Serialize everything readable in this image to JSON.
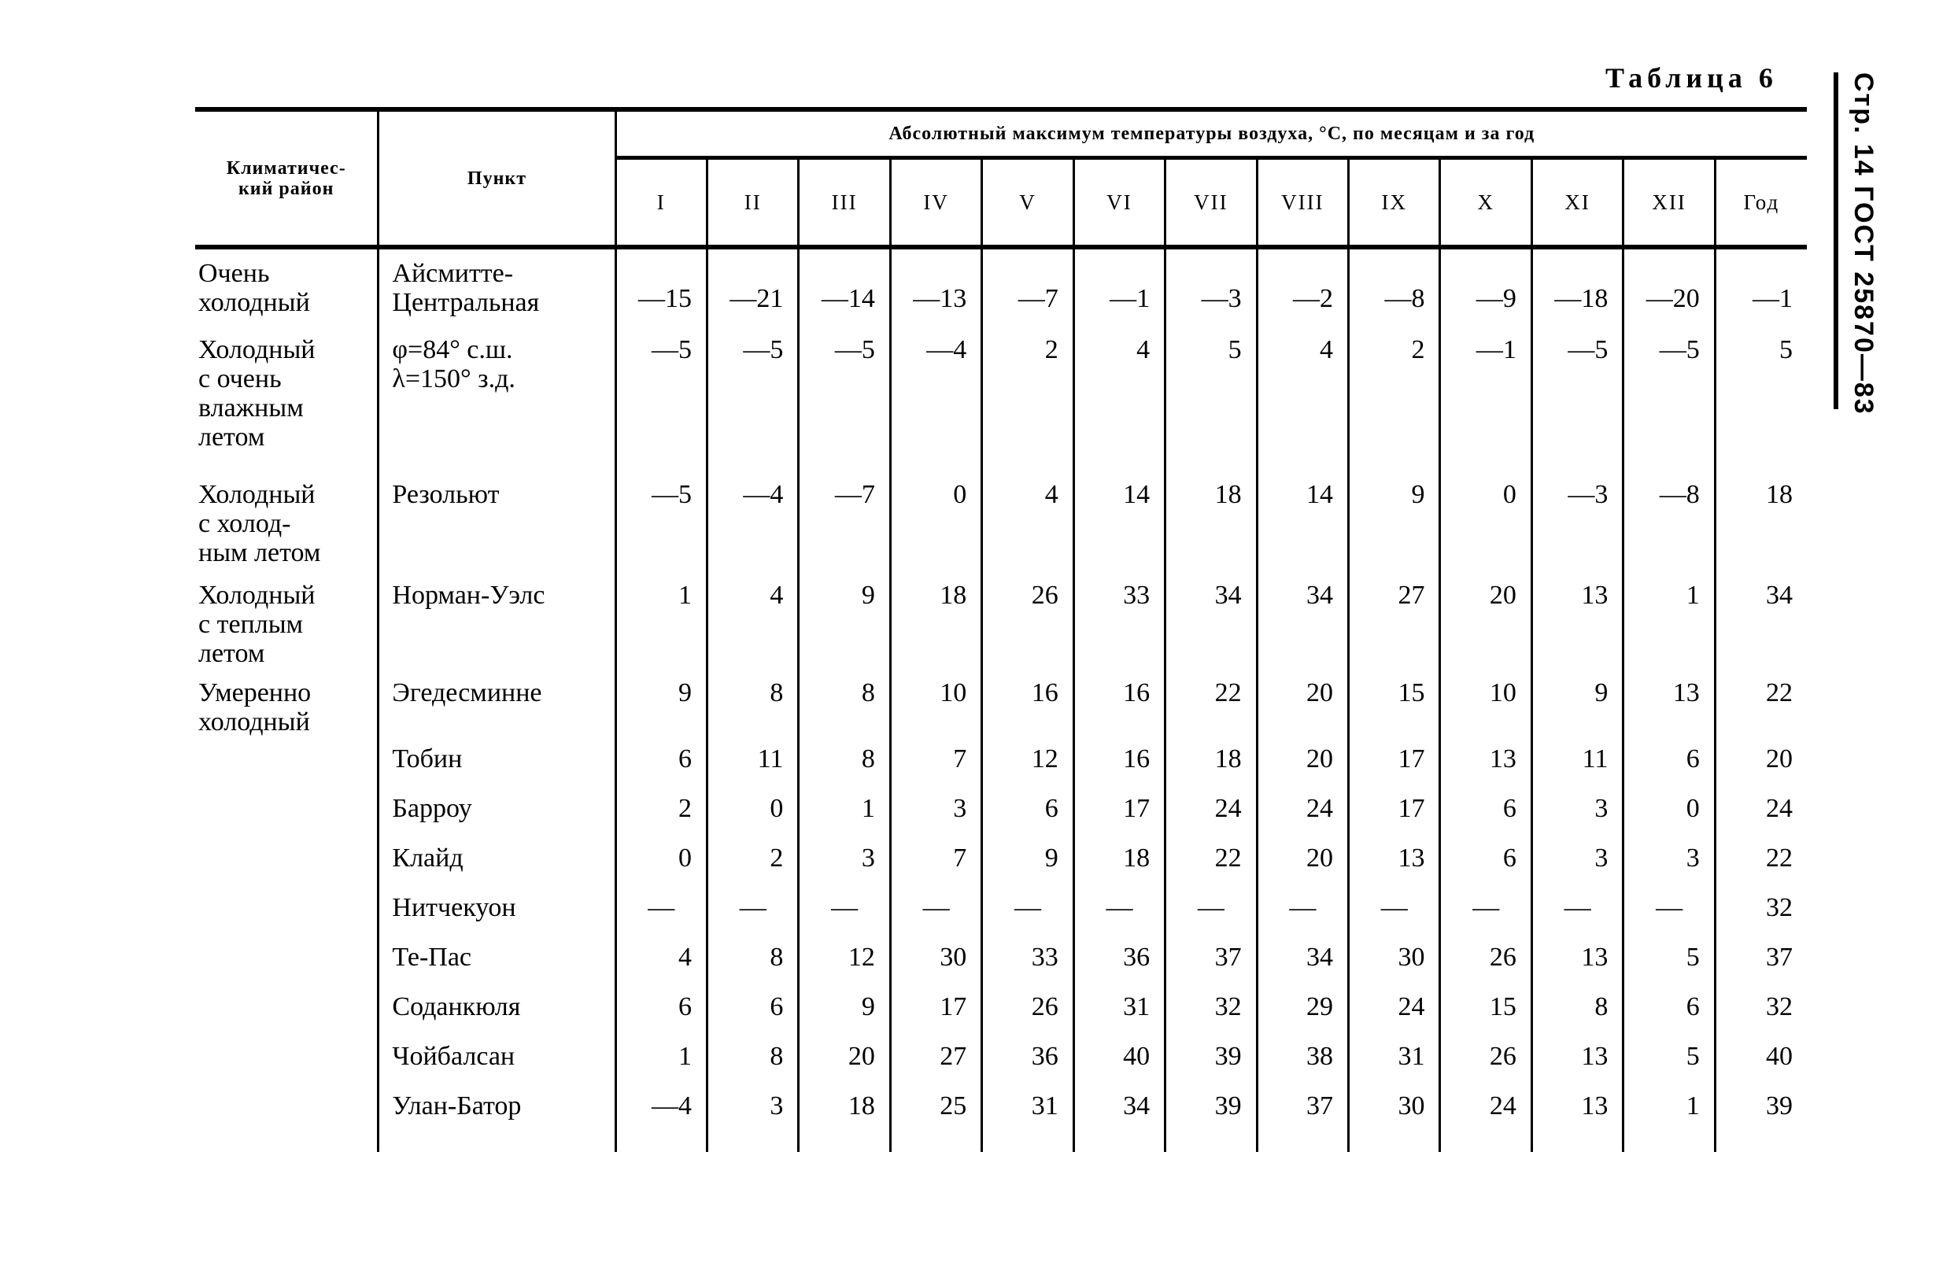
{
  "caption": "Таблица 6",
  "page_header": "Стр. 14 ГОСТ 25870—83",
  "table": {
    "col_region": "Климатичес-\nкий район",
    "col_place": "Пункт",
    "group_header": "Абсолютный максимум температуры воздуха, °C, по месяцам и за год",
    "months": [
      "I",
      "II",
      "III",
      "IV",
      "V",
      "VI",
      "VII",
      "VIII",
      "IX",
      "X",
      "XI",
      "XII",
      "Год"
    ],
    "rows": [
      {
        "region": "Очень\nхолодный",
        "place": "Айсмитте-\nЦентральная",
        "values": [
          "—15",
          "—21",
          "—14",
          "—13",
          "—7",
          "—1",
          "—3",
          "—2",
          "—8",
          "—9",
          "—18",
          "—20",
          "—1"
        ]
      },
      {
        "region": "Холодный\nс очень\nвлажным\nлетом",
        "place": "φ=84° с.ш.\nλ=150° з.д.",
        "values": [
          "—5",
          "—5",
          "—5",
          "—4",
          "2",
          "4",
          "5",
          "4",
          "2",
          "—1",
          "—5",
          "—5",
          "5"
        ]
      },
      {
        "region": "Холодный\nс холод-\nным летом",
        "place": "Резольют",
        "values": [
          "—5",
          "—4",
          "—7",
          "0",
          "4",
          "14",
          "18",
          "14",
          "9",
          "0",
          "—3",
          "—8",
          "18"
        ]
      },
      {
        "region": "Холодный\nс теплым\nлетом",
        "place": "Норман-Уэлс",
        "values": [
          "1",
          "4",
          "9",
          "18",
          "26",
          "33",
          "34",
          "34",
          "27",
          "20",
          "13",
          "1",
          "34"
        ]
      },
      {
        "region": "Умеренно\nхолодный",
        "place": "Эгедесминне",
        "values": [
          "9",
          "8",
          "8",
          "10",
          "16",
          "16",
          "22",
          "20",
          "15",
          "10",
          "9",
          "13",
          "22"
        ]
      },
      {
        "region": "",
        "place": "Тобин",
        "values": [
          "6",
          "11",
          "8",
          "7",
          "12",
          "16",
          "18",
          "20",
          "17",
          "13",
          "11",
          "6",
          "20"
        ]
      },
      {
        "region": "",
        "place": "Барроу",
        "values": [
          "2",
          "0",
          "1",
          "3",
          "6",
          "17",
          "24",
          "24",
          "17",
          "6",
          "3",
          "0",
          "24"
        ]
      },
      {
        "region": "",
        "place": "Клайд",
        "values": [
          "0",
          "2",
          "3",
          "7",
          "9",
          "18",
          "22",
          "20",
          "13",
          "6",
          "3",
          "3",
          "22"
        ]
      },
      {
        "region": "",
        "place": "Нитчекуон",
        "values": [
          "—",
          "—",
          "—",
          "—",
          "—",
          "—",
          "—",
          "—",
          "—",
          "—",
          "—",
          "—",
          "32"
        ]
      },
      {
        "region": "",
        "place": "Те-Пас",
        "values": [
          "4",
          "8",
          "12",
          "30",
          "33",
          "36",
          "37",
          "34",
          "30",
          "26",
          "13",
          "5",
          "37"
        ]
      },
      {
        "region": "",
        "place": "Соданкюля",
        "values": [
          "6",
          "6",
          "9",
          "17",
          "26",
          "31",
          "32",
          "29",
          "24",
          "15",
          "8",
          "6",
          "32"
        ]
      },
      {
        "region": "",
        "place": "Чойбалсан",
        "values": [
          "1",
          "8",
          "20",
          "27",
          "36",
          "40",
          "39",
          "38",
          "31",
          "26",
          "13",
          "5",
          "40"
        ]
      },
      {
        "region": "",
        "place": "Улан-Батор",
        "values": [
          "—4",
          "3",
          "18",
          "25",
          "31",
          "34",
          "39",
          "37",
          "30",
          "24",
          "13",
          "1",
          "39"
        ]
      }
    ]
  }
}
